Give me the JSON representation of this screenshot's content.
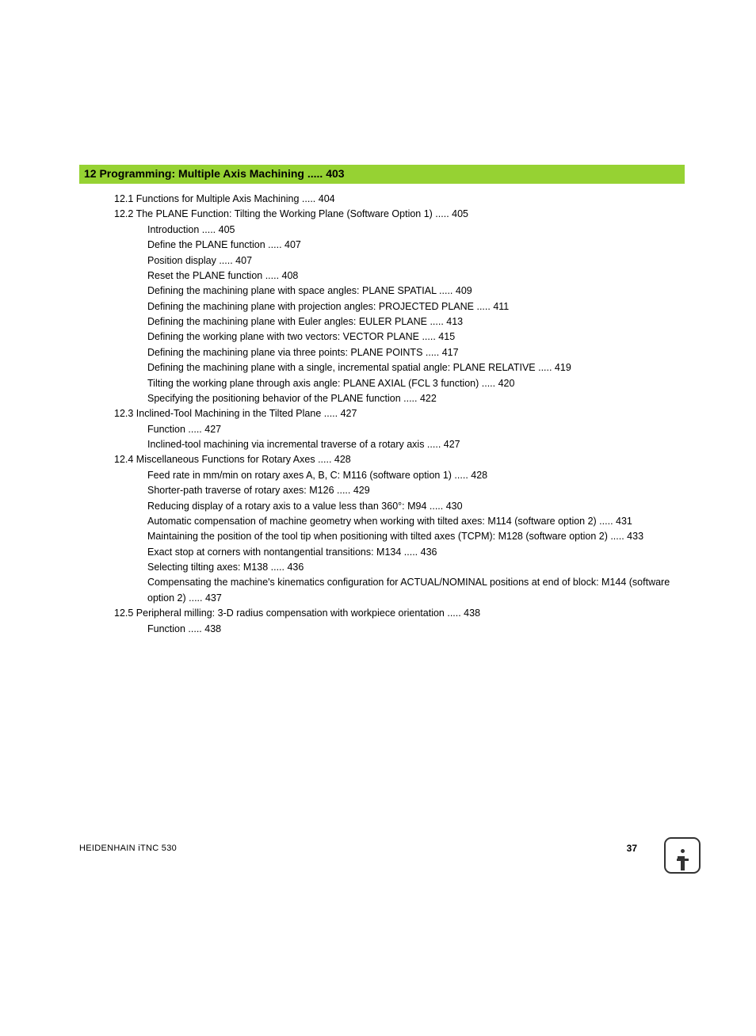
{
  "chapter": {
    "title": "12 Programming: Multiple Axis Machining ..... 403"
  },
  "toc": [
    {
      "level": 1,
      "text": "12.1 Functions for Multiple Axis Machining ..... 404"
    },
    {
      "level": 1,
      "text": "12.2 The PLANE Function: Tilting the Working Plane (Software Option 1) ..... 405"
    },
    {
      "level": 2,
      "text": "Introduction ..... 405"
    },
    {
      "level": 2,
      "text": "Define the PLANE function ..... 407"
    },
    {
      "level": 2,
      "text": "Position display ..... 407"
    },
    {
      "level": 2,
      "text": "Reset the PLANE function ..... 408"
    },
    {
      "level": 2,
      "text": "Defining the machining plane with space angles: PLANE SPATIAL ..... 409"
    },
    {
      "level": 2,
      "text": "Defining the machining plane with projection angles: PROJECTED PLANE ..... 411"
    },
    {
      "level": 2,
      "text": "Defining the machining plane with Euler angles: EULER PLANE ..... 413"
    },
    {
      "level": 2,
      "text": "Defining the working plane with two vectors: VECTOR PLANE ..... 415"
    },
    {
      "level": 2,
      "text": "Defining the machining plane via three points: PLANE POINTS ..... 417"
    },
    {
      "level": 2,
      "text": "Defining the machining plane with a single, incremental spatial angle: PLANE RELATIVE ..... 419"
    },
    {
      "level": 2,
      "text": "Tilting the working plane through axis angle: PLANE AXIAL (FCL 3 function) ..... 420"
    },
    {
      "level": 2,
      "text": "Specifying the positioning behavior of the PLANE function ..... 422"
    },
    {
      "level": 1,
      "text": "12.3 Inclined-Tool Machining in the Tilted Plane ..... 427"
    },
    {
      "level": 2,
      "text": "Function ..... 427"
    },
    {
      "level": 2,
      "text": "Inclined-tool machining via incremental traverse of a rotary axis  ..... 427"
    },
    {
      "level": 1,
      "text": "12.4 Miscellaneous Functions for Rotary Axes ..... 428"
    },
    {
      "level": 2,
      "text": "Feed rate in mm/min on rotary axes A, B, C: M116 (software option 1) ..... 428"
    },
    {
      "level": 2,
      "text": "Shorter-path traverse of rotary axes: M126 ..... 429"
    },
    {
      "level": 2,
      "text": "Reducing display of a rotary axis to a value less than 360°: M94 ..... 430"
    },
    {
      "level": 2,
      "text": "Automatic compensation of machine geometry when working with tilted axes: M114 (software option 2) ..... 431"
    },
    {
      "level": 2,
      "text": "Maintaining the position of the tool tip when positioning with tilted axes (TCPM): M128 (software option 2) ..... 433"
    },
    {
      "level": 2,
      "text": "Exact stop at corners with nontangential transitions: M134 ..... 436"
    },
    {
      "level": 2,
      "text": "Selecting tilting axes: M138 ..... 436"
    },
    {
      "level": 2,
      "text": "Compensating the machine's kinematics configuration for ACTUAL/NOMINAL positions at end of block: M144 (software option 2) ..... 437"
    },
    {
      "level": 1,
      "text": "12.5 Peripheral milling: 3-D radius compensation with workpiece orientation ..... 438"
    },
    {
      "level": 2,
      "text": "Function ..... 438"
    }
  ],
  "footer": {
    "left": "HEIDENHAIN iTNC 530",
    "page": "37"
  },
  "colors": {
    "chapter_bar_bg": "#96d233",
    "text": "#000000",
    "page_bg": "#ffffff"
  },
  "typography": {
    "chapter_title_fontsize": 14,
    "chapter_title_weight": "bold",
    "body_fontsize": 12.5,
    "footer_fontsize": 11,
    "font_family": "Arial, Helvetica, sans-serif"
  }
}
